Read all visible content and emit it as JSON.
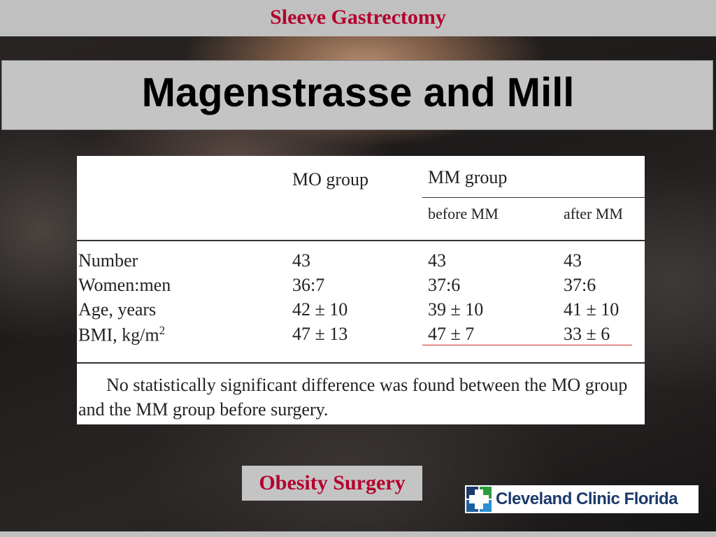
{
  "header": {
    "subtitle": "Sleeve Gastrectomy"
  },
  "slide": {
    "title": "Magenstrasse and Mill"
  },
  "table": {
    "col_mo": "MO group",
    "col_mm": "MM group",
    "col_before": "before MM",
    "col_after": "after MM",
    "rows": [
      {
        "label": "Number",
        "mo": "43",
        "before": "43",
        "after": "43"
      },
      {
        "label": "Women:men",
        "mo": "36:7",
        "before": "37:6",
        "after": "37:6"
      },
      {
        "label": "Age, years",
        "mo": "42 ± 10",
        "before": "39 ± 10",
        "after": "41 ± 10"
      },
      {
        "label": "BMI, kg/m",
        "label_sup": "2",
        "mo": "47 ± 13",
        "before": "47 ± 7",
        "after": "33 ± 6"
      }
    ],
    "note": "No statistically significant difference was found between the MO group and the MM group before surgery."
  },
  "footer": {
    "journal": "Obesity Surgery",
    "logo_text": "Cleveland Clinic Florida"
  },
  "colors": {
    "accent_red": "#b3002d",
    "logo_blue": "#1b3a6b",
    "logo_green": "#2e9a3e",
    "band_gray": "#c0c0c0"
  }
}
